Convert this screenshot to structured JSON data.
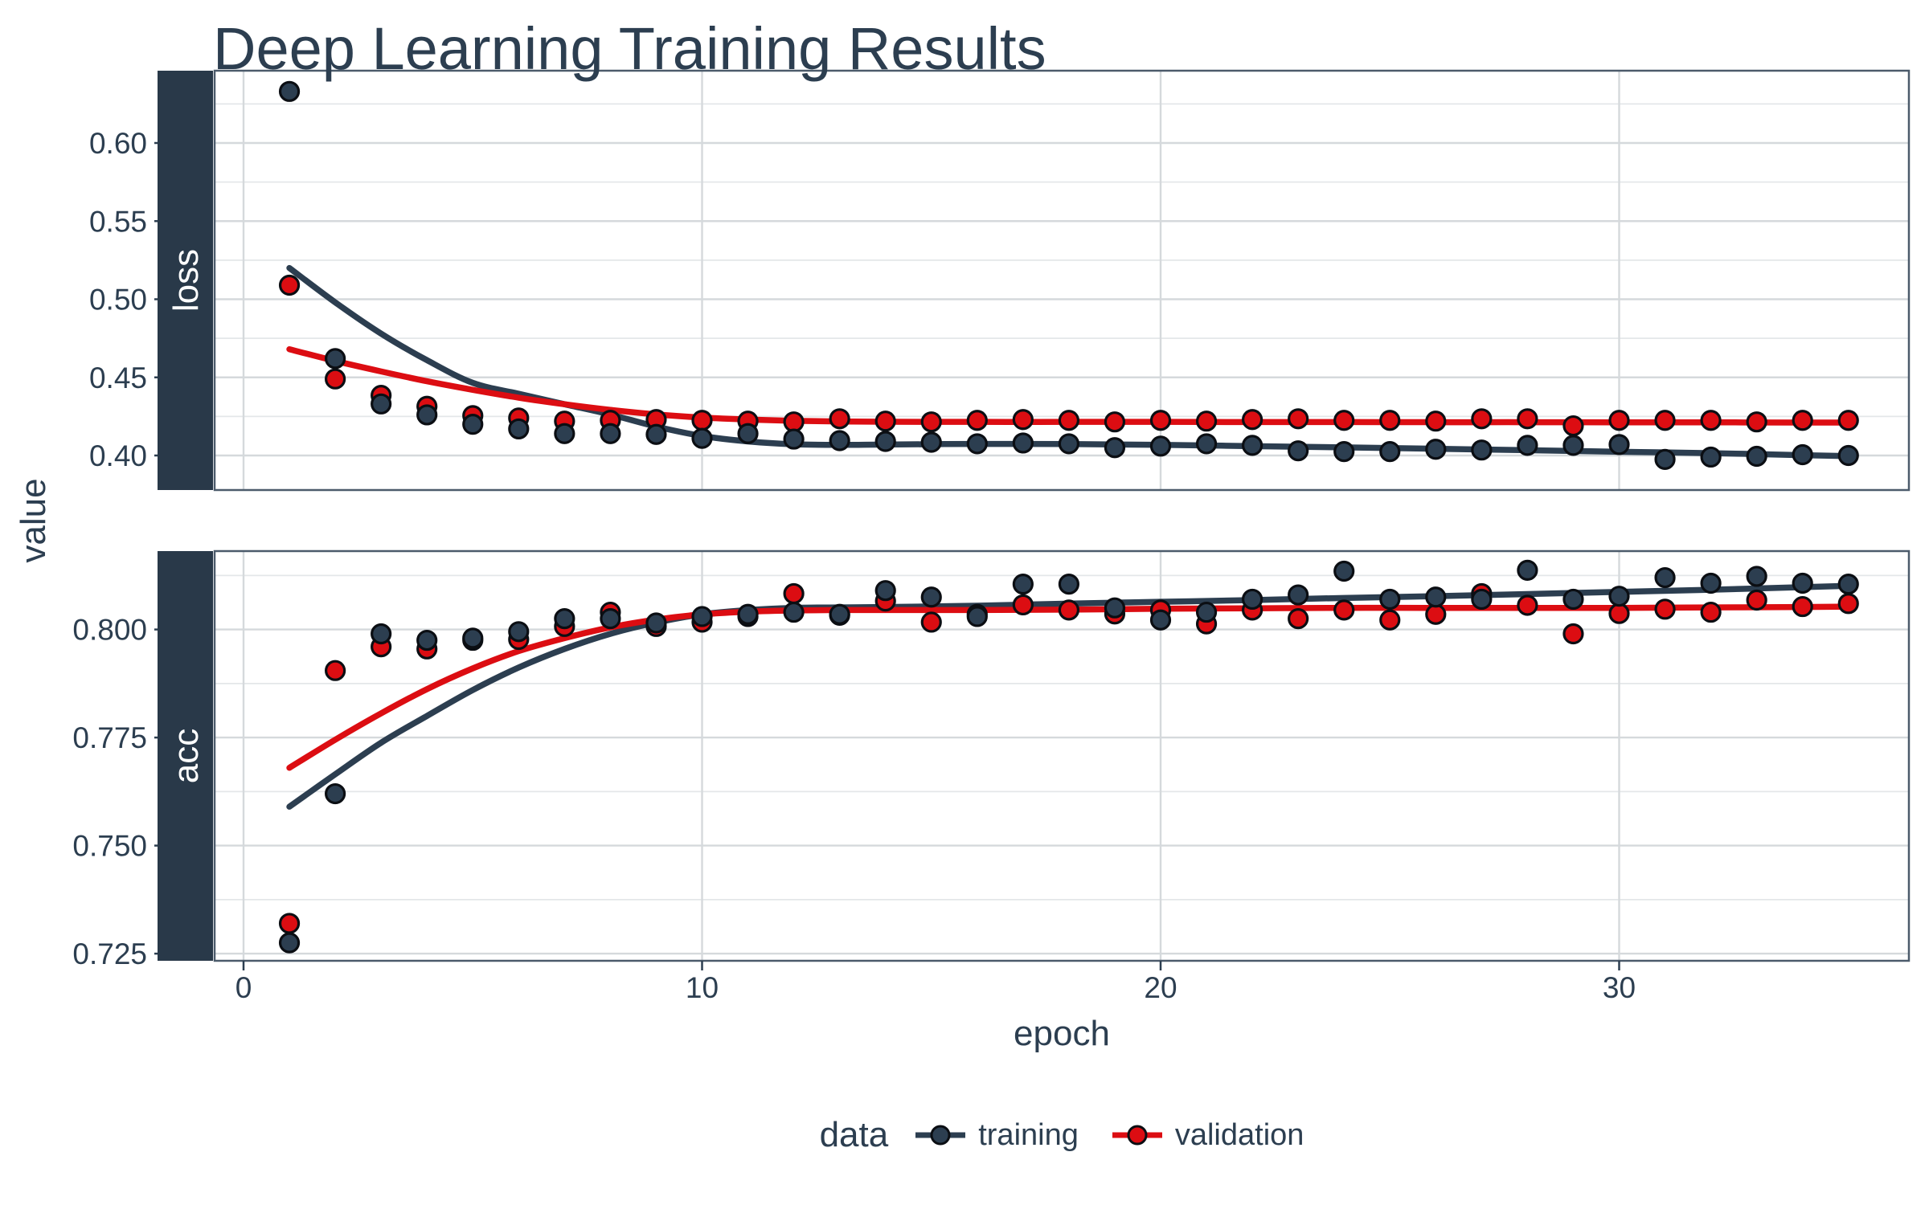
{
  "title": "Deep Learning Training Results",
  "axes": {
    "x_title": "epoch",
    "y_title": "value"
  },
  "legend": {
    "title": "data",
    "items": [
      {
        "label": "training",
        "color": "#2C3E50"
      },
      {
        "label": "validation",
        "color": "#DC0D12"
      }
    ]
  },
  "colors": {
    "navy": "#2C3E50",
    "red": "#DC0D12",
    "point_ring": "#0B0E13",
    "grid_major": "#D5D9DC",
    "grid_minor": "#E4E7E9",
    "panel_border": "#4C5B6B",
    "strip_fill": "#293949",
    "strip_text": "#FFFFFF",
    "axis_text": "#2C3E50"
  },
  "x_axis": {
    "tick_values": [
      0,
      10,
      20,
      30
    ],
    "tick_labels": [
      "0",
      "10",
      "20",
      "30"
    ]
  },
  "chart_data": [
    {
      "type": "scatter",
      "facet": "loss",
      "ylim": [
        0.378,
        0.646
      ],
      "grid": true,
      "y_tick_values": [
        0.6,
        0.55,
        0.5,
        0.45,
        0.4
      ],
      "y_tick_labels": [
        "0.60",
        "0.55",
        "0.50",
        "0.45",
        "0.40"
      ],
      "y_minor_values": [
        0.625,
        0.575,
        0.525,
        0.475,
        0.425
      ],
      "x": [
        1,
        2,
        3,
        4,
        5,
        6,
        7,
        8,
        9,
        10,
        11,
        12,
        13,
        14,
        15,
        16,
        17,
        18,
        19,
        20,
        21,
        22,
        23,
        24,
        25,
        26,
        27,
        28,
        29,
        30,
        31,
        32,
        33,
        34,
        35
      ],
      "series": [
        {
          "name": "training",
          "values": [
            0.633,
            0.462,
            0.433,
            0.426,
            0.42,
            0.417,
            0.414,
            0.414,
            0.4135,
            0.411,
            0.414,
            0.4105,
            0.4095,
            0.409,
            0.4085,
            0.4075,
            0.408,
            0.4075,
            0.405,
            0.406,
            0.4075,
            0.4065,
            0.403,
            0.4025,
            0.4025,
            0.404,
            0.4035,
            0.4065,
            0.4065,
            0.407,
            0.3975,
            0.399,
            0.3995,
            0.4005,
            0.4
          ]
        },
        {
          "name": "validation",
          "values": [
            0.509,
            0.449,
            0.4385,
            0.4315,
            0.4255,
            0.424,
            0.422,
            0.4225,
            0.423,
            0.4225,
            0.422,
            0.4215,
            0.4235,
            0.422,
            0.4215,
            0.4225,
            0.423,
            0.4225,
            0.4215,
            0.4225,
            0.422,
            0.423,
            0.4235,
            0.4225,
            0.4225,
            0.422,
            0.4235,
            0.4235,
            0.419,
            0.4225,
            0.4225,
            0.4225,
            0.4215,
            0.4225,
            0.4225
          ]
        }
      ],
      "smooth": [
        {
          "name": "training",
          "x": [
            1,
            2,
            3,
            4,
            5,
            6,
            7,
            8,
            9,
            10,
            11,
            12,
            13,
            14,
            16,
            18,
            20,
            22,
            24,
            26,
            28,
            30,
            32,
            34,
            35
          ],
          "y": [
            0.52,
            0.498,
            0.478,
            0.461,
            0.4465,
            0.4395,
            0.4328,
            0.4262,
            0.4185,
            0.4125,
            0.409,
            0.4072,
            0.4068,
            0.407,
            0.4074,
            0.4073,
            0.4068,
            0.406,
            0.4052,
            0.4043,
            0.4034,
            0.4024,
            0.4015,
            0.4002,
            0.3996
          ]
        },
        {
          "name": "validation",
          "x": [
            1,
            2,
            3,
            4,
            5,
            6,
            7,
            8,
            9,
            10,
            11,
            12,
            13,
            14,
            16,
            18,
            20,
            22,
            24,
            26,
            28,
            30,
            32,
            34,
            35
          ],
          "y": [
            0.468,
            0.4605,
            0.4538,
            0.4475,
            0.442,
            0.437,
            0.4328,
            0.4292,
            0.4263,
            0.4243,
            0.423,
            0.4222,
            0.4218,
            0.4216,
            0.4215,
            0.4215,
            0.4215,
            0.4214,
            0.4214,
            0.4213,
            0.4213,
            0.4212,
            0.4212,
            0.4211,
            0.4211
          ]
        }
      ]
    },
    {
      "type": "scatter",
      "facet": "acc",
      "ylim": [
        0.723,
        0.818
      ],
      "grid": true,
      "y_tick_values": [
        0.8,
        0.775,
        0.75,
        0.725
      ],
      "y_tick_labels": [
        "0.800",
        "0.775",
        "0.750",
        "0.725"
      ],
      "y_minor_values": [
        0.8125,
        0.7875,
        0.7625,
        0.7375
      ],
      "x": [
        1,
        2,
        3,
        4,
        5,
        6,
        7,
        8,
        9,
        10,
        11,
        12,
        13,
        14,
        15,
        16,
        17,
        18,
        19,
        20,
        21,
        22,
        23,
        24,
        25,
        26,
        27,
        28,
        29,
        30,
        31,
        32,
        33,
        34,
        35
      ],
      "series": [
        {
          "name": "training",
          "values": [
            0.7275,
            0.762,
            0.799,
            0.7975,
            0.798,
            0.7995,
            0.8025,
            0.8025,
            0.8015,
            0.803,
            0.8035,
            0.804,
            0.8035,
            0.809,
            0.8075,
            0.803,
            0.8105,
            0.8105,
            0.805,
            0.8022,
            0.804,
            0.807,
            0.808,
            0.8135,
            0.807,
            0.8075,
            0.807,
            0.8137,
            0.807,
            0.8077,
            0.812,
            0.8107,
            0.8123,
            0.8107,
            0.8105
          ]
        },
        {
          "name": "validation",
          "values": [
            0.732,
            0.7905,
            0.796,
            0.7955,
            0.7975,
            0.7977,
            0.8007,
            0.804,
            0.8007,
            0.8017,
            0.803,
            0.8083,
            0.8033,
            0.8066,
            0.8017,
            0.8035,
            0.8057,
            0.8045,
            0.8036,
            0.8045,
            0.8013,
            0.8045,
            0.8025,
            0.8045,
            0.8022,
            0.8035,
            0.8083,
            0.8056,
            0.799,
            0.8037,
            0.8047,
            0.804,
            0.8068,
            0.8053,
            0.806
          ]
        }
      ],
      "smooth": [
        {
          "name": "training",
          "x": [
            1,
            2,
            3,
            4,
            5,
            6,
            7,
            8,
            9,
            10,
            11,
            12,
            13,
            14,
            16,
            18,
            20,
            22,
            24,
            26,
            28,
            30,
            32,
            34,
            35
          ],
          "y": [
            0.759,
            0.7665,
            0.7738,
            0.78,
            0.786,
            0.7912,
            0.7955,
            0.799,
            0.8016,
            0.8035,
            0.8045,
            0.805,
            0.8051,
            0.8052,
            0.8055,
            0.806,
            0.8064,
            0.8068,
            0.8073,
            0.8077,
            0.8082,
            0.8087,
            0.8092,
            0.8098,
            0.8101
          ]
        },
        {
          "name": "validation",
          "x": [
            1,
            2,
            3,
            4,
            5,
            6,
            7,
            8,
            9,
            10,
            11,
            12,
            13,
            14,
            16,
            18,
            20,
            22,
            24,
            26,
            28,
            30,
            32,
            34,
            35
          ],
          "y": [
            0.768,
            0.7745,
            0.7806,
            0.7862,
            0.791,
            0.795,
            0.798,
            0.8005,
            0.8023,
            0.8035,
            0.8041,
            0.8044,
            0.8045,
            0.8045,
            0.8045,
            0.8046,
            0.8048,
            0.8049,
            0.805,
            0.805,
            0.805,
            0.805,
            0.8051,
            0.8052,
            0.8053
          ]
        }
      ]
    }
  ]
}
